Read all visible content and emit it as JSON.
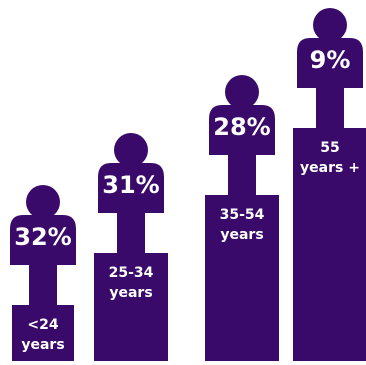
{
  "colors": {
    "figure": "#3a0a6a",
    "text": "#ffffff"
  },
  "chart_data": {
    "type": "bar",
    "categories": [
      [
        "<24",
        "years"
      ],
      [
        "25-34",
        "years"
      ],
      [
        "35-54",
        "years"
      ],
      [
        "55",
        "years +"
      ]
    ],
    "values": [
      32,
      31,
      28,
      9
    ],
    "value_labels": [
      "32%",
      "31%",
      "28%",
      "9%"
    ],
    "title": "",
    "xlabel": "",
    "ylabel": ""
  }
}
